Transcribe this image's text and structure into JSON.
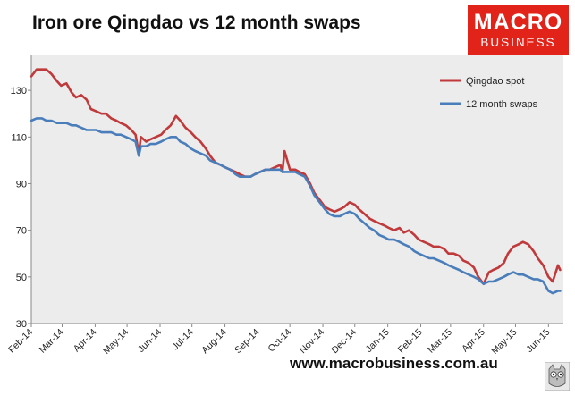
{
  "title": "Iron ore Qingdao vs 12 month swaps",
  "logo": {
    "line1": "MACRO",
    "line2": "BUSINESS"
  },
  "footer": "www.macrobusiness.com.au",
  "colors": {
    "spot": "#c0393b",
    "swaps": "#4a7ebb",
    "plot_bg": "#ececec",
    "brand": "#e2231a"
  },
  "chart_data": {
    "type": "line",
    "title": "Iron ore Qingdao vs 12 month swaps",
    "xlabel": "",
    "ylabel": "",
    "ylim": [
      30,
      145
    ],
    "yticks": [
      30,
      50,
      70,
      90,
      110,
      130
    ],
    "x_tick_labels": [
      "Feb-14",
      "Mar-14",
      "Apr-14",
      "May-14",
      "Jun-14",
      "Jul-14",
      "Aug-14",
      "Sep-14",
      "Oct-14",
      "Nov-14",
      "Dec-14",
      "Jan-15",
      "Feb-15",
      "Mar-15",
      "Apr-15",
      "May-15",
      "Jun-15"
    ],
    "grid": false,
    "legend": "top-right",
    "x": [
      "2014-01-31",
      "2014-02-05",
      "2014-02-10",
      "2014-02-14",
      "2014-02-19",
      "2014-02-24",
      "2014-02-28",
      "2014-03-05",
      "2014-03-10",
      "2014-03-14",
      "2014-03-19",
      "2014-03-24",
      "2014-03-28",
      "2014-04-02",
      "2014-04-07",
      "2014-04-11",
      "2014-04-16",
      "2014-04-21",
      "2014-04-25",
      "2014-04-30",
      "2014-05-05",
      "2014-05-09",
      "2014-05-12",
      "2014-05-14",
      "2014-05-19",
      "2014-05-23",
      "2014-05-28",
      "2014-06-02",
      "2014-06-06",
      "2014-06-11",
      "2014-06-16",
      "2014-06-20",
      "2014-06-25",
      "2014-06-30",
      "2014-07-04",
      "2014-07-09",
      "2014-07-14",
      "2014-07-18",
      "2014-07-23",
      "2014-07-28",
      "2014-08-01",
      "2014-08-06",
      "2014-08-11",
      "2014-08-15",
      "2014-08-20",
      "2014-08-25",
      "2014-08-29",
      "2014-09-03",
      "2014-09-08",
      "2014-09-12",
      "2014-09-17",
      "2014-09-22",
      "2014-09-24",
      "2014-09-26",
      "2014-10-01",
      "2014-10-06",
      "2014-10-10",
      "2014-10-15",
      "2014-10-20",
      "2014-10-24",
      "2014-10-29",
      "2014-11-03",
      "2014-11-07",
      "2014-11-12",
      "2014-11-17",
      "2014-11-21",
      "2014-11-26",
      "2014-12-01",
      "2014-12-05",
      "2014-12-10",
      "2014-12-15",
      "2014-12-19",
      "2014-12-24",
      "2014-12-29",
      "2015-01-02",
      "2015-01-07",
      "2015-01-12",
      "2015-01-16",
      "2015-01-21",
      "2015-01-26",
      "2015-01-30",
      "2015-02-04",
      "2015-02-09",
      "2015-02-13",
      "2015-02-18",
      "2015-02-23",
      "2015-02-27",
      "2015-03-04",
      "2015-03-09",
      "2015-03-13",
      "2015-03-18",
      "2015-03-23",
      "2015-03-27",
      "2015-04-01",
      "2015-04-06",
      "2015-04-10",
      "2015-04-15",
      "2015-04-20",
      "2015-04-24",
      "2015-04-29",
      "2015-05-04",
      "2015-05-08",
      "2015-05-13",
      "2015-05-18",
      "2015-05-22",
      "2015-05-27",
      "2015-06-01",
      "2015-06-05",
      "2015-06-10",
      "2015-06-12"
    ],
    "series": [
      {
        "name": "Qingdao spot",
        "color": "#c0393b",
        "values": [
          136,
          139,
          139,
          139,
          137,
          134,
          132,
          133,
          129,
          127,
          128,
          126,
          122,
          121,
          120,
          120,
          118,
          117,
          116,
          115,
          113,
          111,
          103,
          110,
          108,
          109,
          110,
          111,
          113,
          115,
          119,
          117,
          114,
          112,
          110,
          108,
          105,
          102,
          99,
          98,
          97,
          96,
          95,
          94,
          93,
          93,
          94,
          95,
          96,
          96,
          97,
          98,
          95,
          104,
          96,
          96,
          95,
          94,
          90,
          86,
          83,
          80,
          79,
          78,
          79,
          80,
          82,
          81,
          79,
          77,
          75,
          74,
          73,
          72,
          71,
          70,
          71,
          69,
          70,
          68,
          66,
          65,
          64,
          63,
          63,
          62,
          60,
          60,
          59,
          57,
          56,
          54,
          50,
          47,
          52,
          53,
          54,
          56,
          60,
          63,
          64,
          65,
          64,
          61,
          58,
          55,
          50,
          48,
          55,
          53
        ]
      },
      {
        "name": "12 month swaps",
        "color": "#4a7ebb",
        "values": [
          117,
          118,
          118,
          117,
          117,
          116,
          116,
          116,
          115,
          115,
          114,
          113,
          113,
          113,
          112,
          112,
          112,
          111,
          111,
          110,
          109,
          108,
          102,
          106,
          106,
          107,
          107,
          108,
          109,
          110,
          110,
          108,
          107,
          105,
          104,
          103,
          102,
          100,
          99,
          98,
          97,
          96,
          94,
          93,
          93,
          93,
          94,
          95,
          96,
          96,
          96,
          96,
          95,
          95,
          95,
          95,
          94,
          93,
          89,
          85,
          82,
          79,
          77,
          76,
          76,
          77,
          78,
          77,
          75,
          73,
          71,
          70,
          68,
          67,
          66,
          66,
          65,
          64,
          63,
          61,
          60,
          59,
          58,
          58,
          57,
          56,
          55,
          54,
          53,
          52,
          51,
          50,
          49,
          47,
          48,
          48,
          49,
          50,
          51,
          52,
          51,
          51,
          50,
          49,
          49,
          48,
          44,
          43,
          44,
          44
        ]
      }
    ]
  }
}
